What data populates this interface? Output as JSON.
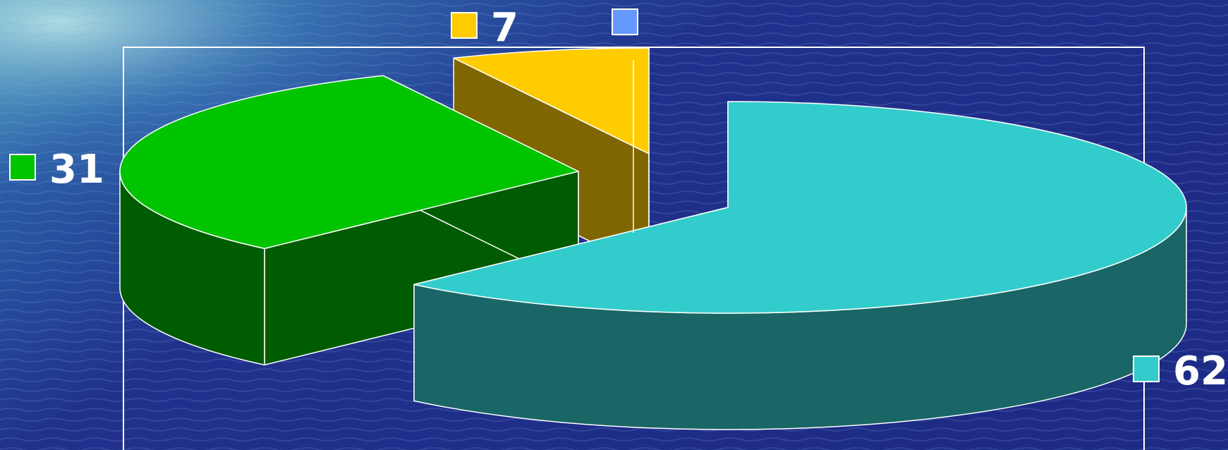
{
  "chart_data": {
    "type": "pie",
    "style": "3d-exploded",
    "title": "",
    "categories": [
      "",
      "",
      "",
      ""
    ],
    "values": [
      62,
      31,
      7,
      0
    ],
    "labels": [
      "62",
      "31",
      "7",
      ""
    ],
    "colors": [
      "#33cccc",
      "#00c400",
      "#ffcc00",
      "#6699ff"
    ],
    "side_colors": [
      "#1a6666",
      "#005c00",
      "#806600",
      "#334c80"
    ],
    "data_labels_shown": true,
    "legend": "none",
    "frame_color": "#ffffff",
    "background": "water-photo"
  }
}
